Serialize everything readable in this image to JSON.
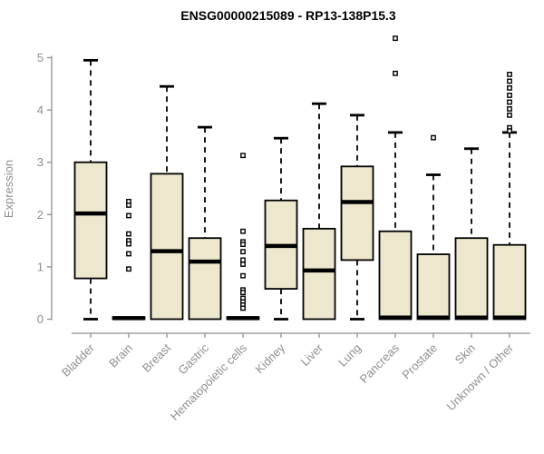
{
  "chart_data": {
    "type": "boxplot",
    "title": "ENSG00000215089 - RP13-138P15.3",
    "ylabel": "Expression",
    "xlabel": "",
    "ylim": [
      0,
      5
    ],
    "yticks": [
      0,
      1,
      2,
      3,
      4,
      5
    ],
    "grid": false,
    "legend": "none",
    "categories": [
      "Bladder",
      "Brain",
      "Breast",
      "Gastric",
      "Hematopoietic cells",
      "Kidney",
      "Liver",
      "Lung",
      "Pancreas",
      "Prostate",
      "Skin",
      "Unknown / Other"
    ],
    "boxes": [
      {
        "category": "Bladder",
        "low": 0,
        "q1": 0.78,
        "median": 2.02,
        "q3": 3.0,
        "high": 4.95,
        "outliers": []
      },
      {
        "category": "Brain",
        "low": 0,
        "q1": 0.0,
        "median": 0.02,
        "q3": 0.04,
        "high": 0.04,
        "outliers": [
          2.25,
          2.18,
          1.98,
          1.63,
          1.5,
          1.44,
          1.25,
          0.96
        ]
      },
      {
        "category": "Breast",
        "low": 0,
        "q1": 0.0,
        "median": 1.3,
        "q3": 2.78,
        "high": 4.45,
        "outliers": []
      },
      {
        "category": "Gastric",
        "low": 0,
        "q1": 0.0,
        "median": 1.1,
        "q3": 1.55,
        "high": 3.67,
        "outliers": []
      },
      {
        "category": "Hematopoietic cells",
        "low": 0,
        "q1": 0.0,
        "median": 0.02,
        "q3": 0.04,
        "high": 0.04,
        "outliers": [
          3.13,
          1.68,
          1.48,
          1.43,
          1.29,
          1.13,
          1.05,
          0.83,
          0.56,
          0.51,
          0.4,
          0.33,
          0.27,
          0.21
        ]
      },
      {
        "category": "Kidney",
        "low": 0,
        "q1": 0.58,
        "median": 1.4,
        "q3": 2.27,
        "high": 3.46,
        "outliers": []
      },
      {
        "category": "Liver",
        "low": 0,
        "q1": 0.0,
        "median": 0.93,
        "q3": 1.73,
        "high": 4.12,
        "outliers": []
      },
      {
        "category": "Lung",
        "low": 0,
        "q1": 1.13,
        "median": 2.24,
        "q3": 2.92,
        "high": 3.9,
        "outliers": []
      },
      {
        "category": "Pancreas",
        "low": 0,
        "q1": 0.0,
        "median": 0.03,
        "q3": 1.68,
        "high": 3.57,
        "outliers": [
          5.37,
          4.7
        ]
      },
      {
        "category": "Prostate",
        "low": 0,
        "q1": 0.0,
        "median": 0.03,
        "q3": 1.24,
        "high": 2.76,
        "outliers": [
          3.47
        ]
      },
      {
        "category": "Skin",
        "low": 0,
        "q1": 0.0,
        "median": 0.03,
        "q3": 1.55,
        "high": 3.26,
        "outliers": []
      },
      {
        "category": "Unknown / Other",
        "low": 0,
        "q1": 0.0,
        "median": 0.03,
        "q3": 1.42,
        "high": 3.57,
        "outliers": [
          4.68,
          4.55,
          4.42,
          4.28,
          4.15,
          4.02,
          3.9,
          3.66,
          3.6
        ]
      }
    ],
    "styles": {
      "box_fill": "#ede7cd",
      "box_stroke": "#000000",
      "median_color": "#000000",
      "whisker_color": "#000000",
      "outlier_fill": "#ffffff",
      "outlier_stroke": "#000000",
      "axis_color": "#8f8f8f",
      "tick_label_color": "#8f8f8f",
      "title_color": "#000000",
      "background": "#ffffff"
    }
  }
}
